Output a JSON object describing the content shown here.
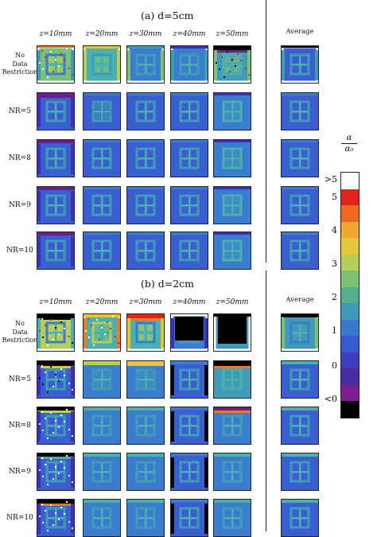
{
  "panels": [
    {
      "title": "(a) d=5cm",
      "columns": [
        "z=10mm",
        "z=20mm",
        "z=30mm",
        "z=40mm",
        "z=50mm"
      ],
      "average_label": "Average",
      "rows": [
        "No\nData\nRestriction",
        "NR=5",
        "NR=8",
        "NR=9",
        "NR=10"
      ]
    },
    {
      "title": "(b) d=2cm",
      "columns": [
        "z=10mm",
        "z=20mm",
        "z=30mm",
        "z=40mm",
        "z=50mm"
      ],
      "average_label": "Average",
      "rows": [
        "No\nData\nRestriction",
        "NR=5",
        "NR=8",
        "NR=9",
        "NR=10"
      ]
    }
  ],
  "colorbar": {
    "title_num": "α",
    "title_den": "α₀",
    "labels": [
      ">5",
      "5",
      "4",
      "3",
      "2",
      "1",
      "0",
      "<0"
    ],
    "colors": [
      "#ffffff",
      "#e0241b",
      "#ef6a21",
      "#f3a531",
      "#e2c83c",
      "#b5cf5a",
      "#7fc174",
      "#54b08e",
      "#3f99b8",
      "#3b78cf",
      "#3859d2",
      "#3b3fbf",
      "#4a2ca2",
      "#7a1f8c",
      "#000000"
    ]
  },
  "palette": {
    "white": "#ffffff",
    "black": "#000000",
    "purple": "#6a1f8a",
    "indigo": "#3a32b8",
    "blue": "#3b5fd0",
    "mid_blue": "#3b7ccf",
    "teal": "#3f9bb6",
    "cyan": "#4ab0b0",
    "green": "#7fc174",
    "yellow_green": "#b7cf58",
    "yellow": "#e3c63b",
    "orange": "#ef7a22",
    "red": "#e0241b"
  }
}
